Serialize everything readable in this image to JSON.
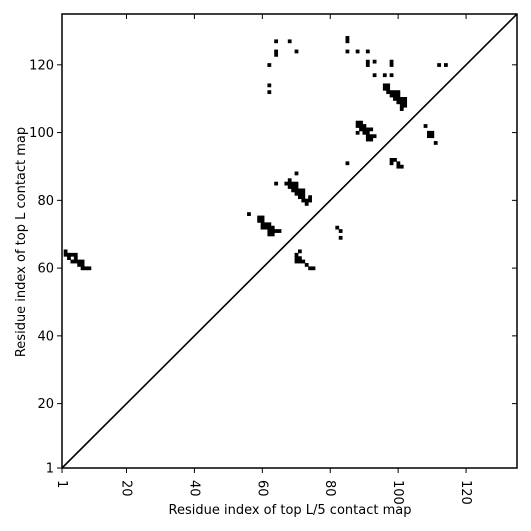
{
  "chart_data": {
    "type": "scatter",
    "xlabel": "Residue index of top L/5 contact map",
    "ylabel": "Residue index of top L contact map",
    "xlim": [
      1,
      135
    ],
    "ylim": [
      1,
      135
    ],
    "x_ticks": [
      1,
      20,
      40,
      60,
      80,
      100,
      120
    ],
    "y_ticks": [
      1,
      20,
      40,
      60,
      80,
      100,
      120
    ],
    "x_tick_labels": [
      "1",
      "20",
      "40",
      "60",
      "80",
      "100",
      "120"
    ],
    "y_tick_labels": [
      "1",
      "20",
      "40",
      "60",
      "80",
      "100",
      "120"
    ],
    "x_tick_rotation_deg": -90,
    "grid": false,
    "legend": "none",
    "marker_color": "#000000",
    "diagonal_line": {
      "from": [
        1,
        1
      ],
      "to": [
        135,
        135
      ]
    },
    "series": [
      {
        "values": [
          [
            2,
            65
          ],
          [
            2,
            64
          ],
          [
            3,
            64
          ],
          [
            3,
            63
          ],
          [
            4,
            64
          ],
          [
            5,
            64
          ],
          [
            4,
            62
          ],
          [
            5,
            63
          ],
          [
            5,
            62
          ],
          [
            6,
            62
          ],
          [
            6,
            61
          ],
          [
            7,
            62
          ],
          [
            7,
            61
          ],
          [
            7,
            60
          ],
          [
            8,
            60
          ],
          [
            9,
            60
          ],
          [
            56,
            76
          ],
          [
            59,
            75
          ],
          [
            60,
            75
          ],
          [
            60,
            74
          ],
          [
            59,
            74
          ],
          [
            60,
            73
          ],
          [
            61,
            73
          ],
          [
            61,
            72
          ],
          [
            60,
            72
          ],
          [
            62,
            72
          ],
          [
            62,
            73
          ],
          [
            62,
            71
          ],
          [
            63,
            71
          ],
          [
            63,
            70
          ],
          [
            62,
            70
          ],
          [
            63,
            72
          ],
          [
            64,
            71
          ],
          [
            65,
            71
          ],
          [
            62,
            120
          ],
          [
            62,
            114
          ],
          [
            62,
            112
          ],
          [
            64,
            127
          ],
          [
            64,
            124
          ],
          [
            64,
            123
          ],
          [
            64,
            85
          ],
          [
            68,
            86
          ],
          [
            68,
            85
          ],
          [
            67,
            85
          ],
          [
            69,
            85
          ],
          [
            69,
            84
          ],
          [
            68,
            84
          ],
          [
            70,
            85
          ],
          [
            70,
            84
          ],
          [
            70,
            83
          ],
          [
            69,
            83
          ],
          [
            70,
            82
          ],
          [
            71,
            83
          ],
          [
            72,
            83
          ],
          [
            71,
            82
          ],
          [
            72,
            82
          ],
          [
            72,
            81
          ],
          [
            71,
            81
          ],
          [
            72,
            80
          ],
          [
            73,
            80
          ],
          [
            73,
            79
          ],
          [
            74,
            81
          ],
          [
            74,
            80
          ],
          [
            70,
            88
          ],
          [
            68,
            127
          ],
          [
            70,
            124
          ],
          [
            70,
            64
          ],
          [
            70,
            63
          ],
          [
            71,
            63
          ],
          [
            71,
            62
          ],
          [
            70,
            62
          ],
          [
            72,
            62
          ],
          [
            71,
            65
          ],
          [
            73,
            61
          ],
          [
            74,
            60
          ],
          [
            75,
            60
          ],
          [
            82,
            72
          ],
          [
            83,
            71
          ],
          [
            83,
            69
          ],
          [
            85,
            128
          ],
          [
            85,
            127
          ],
          [
            85,
            124
          ],
          [
            85,
            91
          ],
          [
            88,
            124
          ],
          [
            91,
            124
          ],
          [
            88,
            103
          ],
          [
            89,
            103
          ],
          [
            88,
            102
          ],
          [
            89,
            102
          ],
          [
            90,
            102
          ],
          [
            89,
            101
          ],
          [
            88,
            100
          ],
          [
            90,
            101
          ],
          [
            91,
            101
          ],
          [
            92,
            101
          ],
          [
            90,
            100
          ],
          [
            91,
            100
          ],
          [
            91,
            99
          ],
          [
            92,
            99
          ],
          [
            93,
            99
          ],
          [
            91,
            98
          ],
          [
            92,
            98
          ],
          [
            91,
            121
          ],
          [
            91,
            120
          ],
          [
            93,
            121
          ],
          [
            93,
            117
          ],
          [
            96,
            117
          ],
          [
            98,
            117
          ],
          [
            98,
            121
          ],
          [
            98,
            120
          ],
          [
            96,
            114
          ],
          [
            97,
            114
          ],
          [
            96,
            113
          ],
          [
            97,
            113
          ],
          [
            97,
            112
          ],
          [
            98,
            112
          ],
          [
            99,
            112
          ],
          [
            100,
            112
          ],
          [
            98,
            111
          ],
          [
            99,
            111
          ],
          [
            100,
            111
          ],
          [
            99,
            110
          ],
          [
            100,
            110
          ],
          [
            101,
            110
          ],
          [
            100,
            109
          ],
          [
            101,
            109
          ],
          [
            102,
            110
          ],
          [
            102,
            109
          ],
          [
            102,
            108
          ],
          [
            101,
            108
          ],
          [
            101,
            107
          ],
          [
            98,
            92
          ],
          [
            99,
            92
          ],
          [
            98,
            91
          ],
          [
            100,
            91
          ],
          [
            100,
            90
          ],
          [
            101,
            90
          ],
          [
            108,
            102
          ],
          [
            109,
            100
          ],
          [
            110,
            100
          ],
          [
            109,
            99
          ],
          [
            110,
            99
          ],
          [
            111,
            97
          ],
          [
            112,
            120
          ],
          [
            114,
            120
          ]
        ]
      }
    ]
  }
}
